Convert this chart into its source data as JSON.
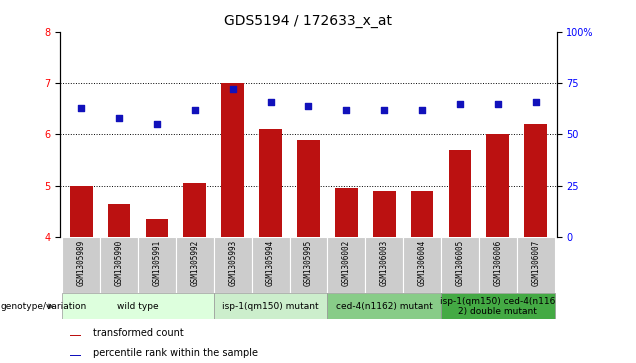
{
  "title": "GDS5194 / 172633_x_at",
  "samples": [
    "GSM1305989",
    "GSM1305990",
    "GSM1305991",
    "GSM1305992",
    "GSM1305993",
    "GSM1305994",
    "GSM1305995",
    "GSM1306002",
    "GSM1306003",
    "GSM1306004",
    "GSM1306005",
    "GSM1306006",
    "GSM1306007"
  ],
  "bar_values": [
    5.0,
    4.65,
    4.35,
    5.05,
    7.0,
    6.1,
    5.9,
    4.95,
    4.9,
    4.9,
    5.7,
    6.0,
    6.2
  ],
  "percentile_values": [
    63,
    58,
    55,
    62,
    72,
    66,
    64,
    62,
    62,
    62,
    65,
    65,
    66
  ],
  "ylim_left": [
    4,
    8
  ],
  "ylim_right": [
    0,
    100
  ],
  "yticks_left": [
    4,
    5,
    6,
    7,
    8
  ],
  "yticks_right": [
    0,
    25,
    50,
    75,
    100
  ],
  "bar_color": "#bb1111",
  "dot_color": "#1111bb",
  "groups": [
    {
      "label": "wild type",
      "indices": [
        0,
        1,
        2,
        3
      ],
      "color": "#ddffdd"
    },
    {
      "label": "isp-1(qm150) mutant",
      "indices": [
        4,
        5,
        6
      ],
      "color": "#cceecc"
    },
    {
      "label": "ced-4(n1162) mutant",
      "indices": [
        7,
        8,
        9
      ],
      "color": "#88cc88"
    },
    {
      "label": "isp-1(qm150) ced-4(n116\n2) double mutant",
      "indices": [
        10,
        11,
        12
      ],
      "color": "#44aa44"
    }
  ],
  "legend_label_bar": "transformed count",
  "legend_label_dot": "percentile rank within the sample",
  "genotype_label": "genotype/variation",
  "title_fontsize": 10,
  "tick_fontsize": 7,
  "group_fontsize": 6.5,
  "sample_fontsize": 5.5
}
